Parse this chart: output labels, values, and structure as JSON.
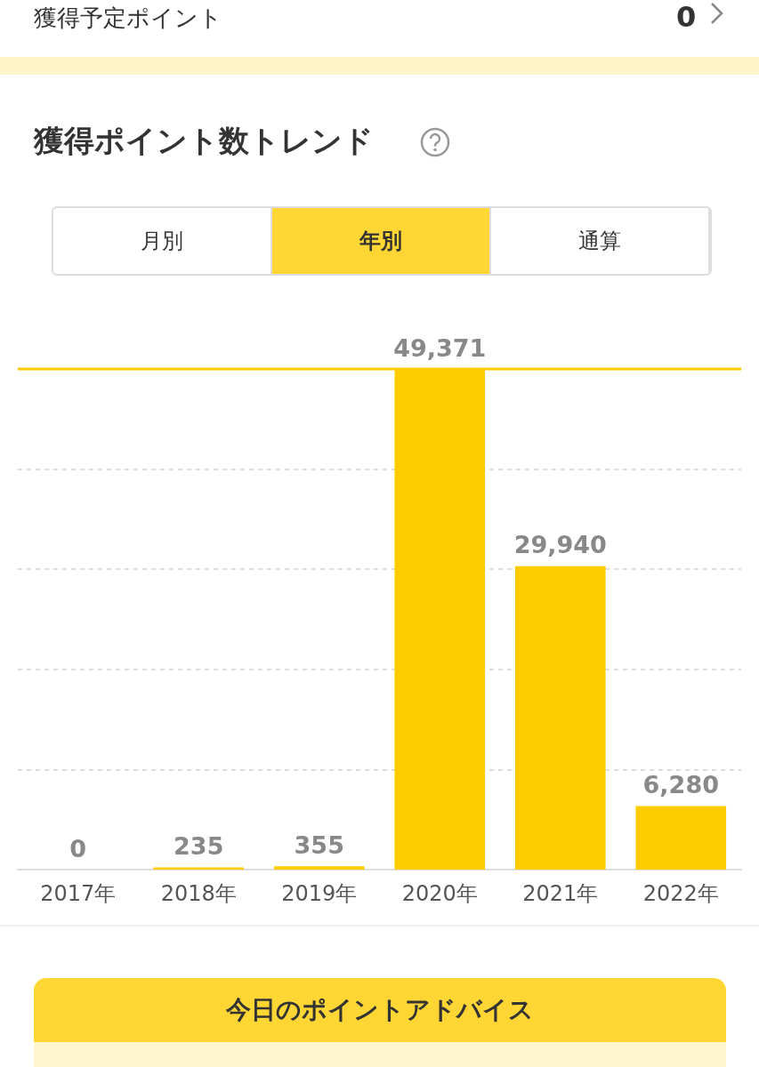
{
  "chart_data": {
    "type": "bar",
    "title": "獲得ポイント数トレンド",
    "categories": [
      "2017年",
      "2018年",
      "2019年",
      "2020年",
      "2021年",
      "2022年"
    ],
    "values": [
      0,
      235,
      355,
      49371,
      29940,
      6280
    ],
    "color": "#ffcc00",
    "ylim": [
      0,
      49371
    ],
    "yticks": [
      {
        "value": 9874,
        "label": null
      },
      {
        "value": 19748,
        "label": null
      },
      {
        "value": 29623,
        "label": null
      },
      {
        "value": 39497,
        "label": null
      }
    ],
    "value_labels": [
      "0",
      "235",
      "355",
      "49,371",
      "29,940",
      "6,280"
    ],
    "grid": "y",
    "tick_labels": "x",
    "legend": false,
    "ref_lines": [
      {
        "axis": "y",
        "value": 49371,
        "label": null,
        "color": "#ffcc00"
      }
    ],
    "annotations": [
      "獲得予定ポイント",
      "0",
      "月別",
      "年別",
      "通算",
      "今日のポイントアドバイス"
    ]
  }
}
